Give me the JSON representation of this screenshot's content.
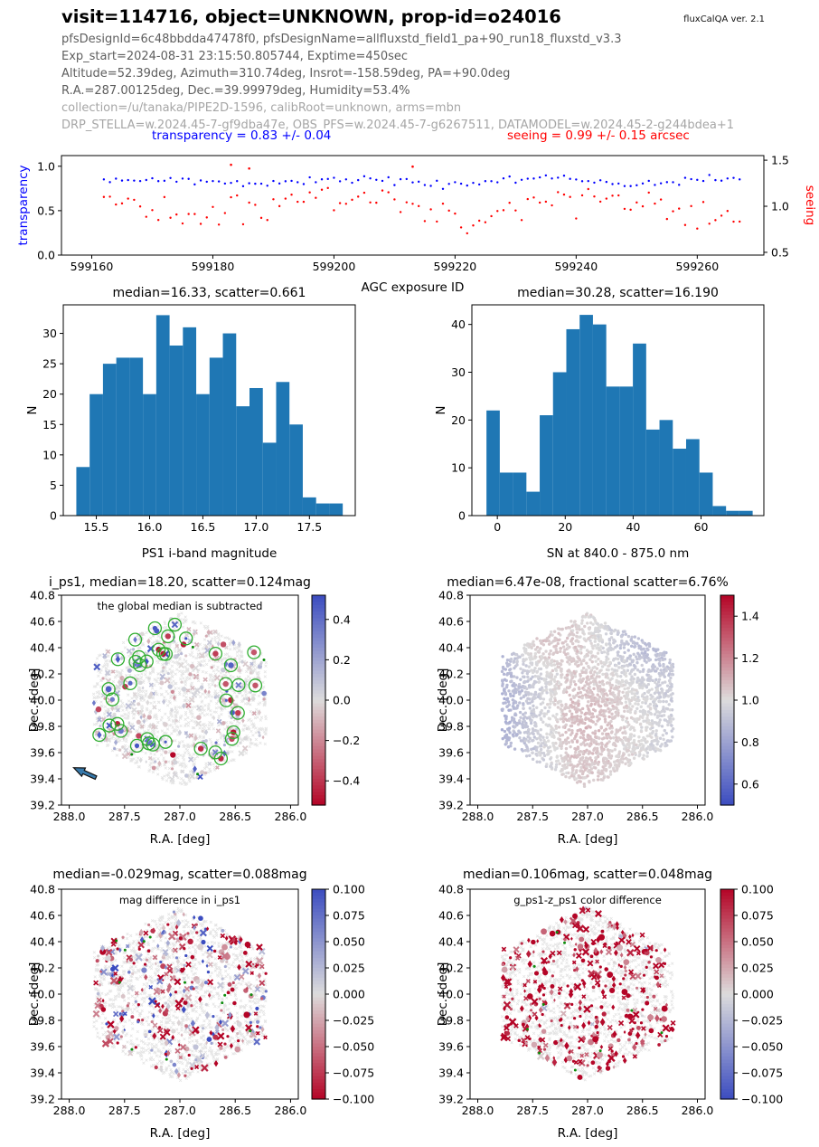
{
  "header": {
    "title": "visit=114716, object=UNKNOWN, prop-id=o24016",
    "version": "fluxCalQA ver. 2.1",
    "info_lines": [
      "pfsDesignId=6c48bbdda47478f0, pfsDesignName=allfluxstd_field1_pa+90_run18_fluxstd_v3.3",
      "Exp_start=2024-08-31 23:15:50.805744, Exptime=450sec",
      "Altitude=52.39deg, Azimuth=310.74deg, Insrot=-158.59deg, PA=+90.0deg",
      "R.A.=287.00125deg, Dec.=39.99979deg, Humidity=53.4%"
    ],
    "dim_lines": [
      "collection=/u/tanaka/PIPE2D-1596, calibRoot=unknown, arms=mbn",
      "DRP_STELLA=w.2024.45-7-gf9dba47e, OBS_PFS=w.2024.45-7-g6267511, DATAMODEL=w.2024.45-2-g244bdea+1"
    ],
    "transparency_text": "transparency = 0.83 +/- 0.04",
    "seeing_text": "seeing = 0.99 +/- 0.15 arcsec",
    "colors": {
      "transparency": "#0000ff",
      "seeing": "#ff0000"
    }
  },
  "chart_data": [
    {
      "id": "agc",
      "type": "scatter",
      "xlabel": "AGC exposure ID",
      "ylabel_left": "transparency",
      "ylabel_right": "seeing",
      "xlim": [
        599155,
        599271
      ],
      "xticks": {
        "values": [
          599160,
          599180,
          599200,
          599220,
          599240,
          599260
        ],
        "labels": [
          "599160",
          "599180",
          "599200",
          "599220",
          "599240",
          "599260"
        ]
      },
      "ylim_left": [
        0,
        1.12
      ],
      "yticks_left": {
        "values": [
          0,
          0.5,
          1.0
        ],
        "labels": [
          "0.0",
          "0.5",
          "1.0"
        ]
      },
      "ylim_right": [
        0.47,
        1.55
      ],
      "yticks_right": {
        "values": [
          0.5,
          1.0,
          1.5
        ],
        "labels": [
          "0.5",
          "1.0",
          "1.5"
        ]
      },
      "series": [
        {
          "name": "transparency",
          "axis": "left",
          "color": "#0000ff",
          "mean": 0.83,
          "scatter": 0.04,
          "x_start": 599162,
          "n": 106,
          "x_step": 1,
          "synthesized": true
        },
        {
          "name": "seeing",
          "axis": "right",
          "color": "#ff0000",
          "mean": 0.99,
          "scatter": 0.15,
          "x_start": 599162,
          "n": 106,
          "x_step": 1,
          "synthesized": true
        }
      ],
      "outliers": {
        "seeing": [
          [
            599183,
            1.45
          ],
          [
            599186,
            1.41
          ],
          [
            599213,
            1.43
          ]
        ]
      },
      "marker_size": 2.2,
      "seed": 42,
      "grid": false,
      "legend": "none"
    },
    {
      "id": "hist_i",
      "type": "bar",
      "title": "median=16.33, scatter=0.661",
      "xlabel": "PS1 i-band magnitude",
      "ylabel": "N",
      "bar_color": "#1f77b4",
      "bin_start": 15.3125,
      "bin_width": 0.125,
      "values": [
        8,
        20,
        25,
        26,
        26,
        20,
        33,
        28,
        31,
        20,
        26,
        30,
        18,
        21,
        12,
        22,
        15,
        3,
        2,
        2
      ],
      "xlim": [
        15.19,
        17.93
      ],
      "ylim": [
        0,
        34.7
      ],
      "xticks": {
        "values": [
          15.5,
          16.0,
          16.5,
          17.0,
          17.5
        ],
        "labels": [
          "15.5",
          "16.0",
          "16.5",
          "17.0",
          "17.5"
        ]
      },
      "yticks": {
        "values": [
          0,
          5,
          10,
          15,
          20,
          25,
          30
        ],
        "labels": [
          "0",
          "5",
          "10",
          "15",
          "20",
          "25",
          "30"
        ]
      },
      "grid": false
    },
    {
      "id": "hist_sn",
      "type": "bar",
      "title": "median=30.28, scatter=16.190",
      "xlabel": "SN at 840.0 - 875.0 nm",
      "ylabel": "N",
      "bar_color": "#1f77b4",
      "bin_start": -3.2,
      "bin_width": 3.92,
      "values": [
        22,
        9,
        9,
        5,
        21,
        30,
        39,
        42,
        40,
        27,
        27,
        36,
        18,
        20,
        14,
        16,
        9,
        2,
        1,
        1
      ],
      "xlim": [
        -7.5,
        78.5
      ],
      "ylim": [
        0,
        44.1
      ],
      "xticks": {
        "values": [
          0,
          20,
          40,
          60
        ],
        "labels": [
          "0",
          "20",
          "40",
          "60"
        ]
      },
      "yticks": {
        "values": [
          0,
          10,
          20,
          30,
          40
        ],
        "labels": [
          "0",
          "10",
          "20",
          "30",
          "40"
        ]
      },
      "grid": false
    },
    {
      "id": "map_ips1",
      "type": "scatter",
      "title": "i_ps1, median=18.20, scatter=0.124mag",
      "annotation": "the global median is subtracted",
      "xlabel": "R.A. [deg]",
      "ylabel": "Dec. [deg]",
      "xlim": [
        288.07,
        285.93
      ],
      "ylim": [
        39.2,
        40.8
      ],
      "xticks": {
        "values": [
          288.0,
          287.5,
          287.0,
          286.5,
          286.0
        ],
        "labels": [
          "288.0",
          "287.5",
          "287.0",
          "286.5",
          "286.0"
        ]
      },
      "yticks": {
        "values": [
          39.2,
          39.4,
          39.6,
          39.8,
          40.0,
          40.2,
          40.4,
          40.6,
          40.8
        ],
        "labels": [
          "39.2",
          "39.4",
          "39.6",
          "39.8",
          "40.0",
          "40.2",
          "40.4",
          "40.6",
          "40.8"
        ]
      },
      "colorbar": {
        "vmin": -0.52,
        "vmax": 0.52,
        "high_color": "blue",
        "ticks": [
          0.4,
          0.2,
          0.0,
          -0.2,
          -0.4
        ],
        "labels": [
          "0.4",
          "0.2",
          "0.0",
          "−0.2",
          "−0.4"
        ]
      },
      "hexagon": {
        "ra_center": 287.0,
        "dec_center": 40.0,
        "ra_halfwidth": 0.78,
        "dec_radius": 0.67
      },
      "style": {
        "mode": "qa",
        "n_points": 330,
        "value_mean": 0.0,
        "value_scatter": 0.085,
        "n_strong": 58,
        "strong_blue_fraction": 0.72,
        "n_green_circles": 38,
        "n_green_dots": 4,
        "background_n": 1500
      },
      "arrow": {
        "ra": 287.96,
        "dec": 39.485
      },
      "green_circle_color": "#2fae2f",
      "green_dot_color": "#0d8c0d",
      "synthesized_points": true,
      "seed": 7
    },
    {
      "id": "map_flux",
      "type": "scatter",
      "title": "median=6.47e-08, fractional scatter=6.76%",
      "xlabel": "R.A. [deg]",
      "ylabel": "Dec. [deg]",
      "xlim": [
        288.07,
        285.93
      ],
      "ylim": [
        39.2,
        40.8
      ],
      "xticks": {
        "values": [
          288.0,
          287.5,
          287.0,
          286.5,
          286.0
        ],
        "labels": [
          "288.0",
          "287.5",
          "287.0",
          "286.5",
          "286.0"
        ]
      },
      "yticks": {
        "values": [
          39.2,
          39.4,
          39.6,
          39.8,
          40.0,
          40.2,
          40.4,
          40.6,
          40.8
        ],
        "labels": [
          "39.2",
          "39.4",
          "39.6",
          "39.8",
          "40.0",
          "40.2",
          "40.4",
          "40.6",
          "40.8"
        ]
      },
      "colorbar": {
        "vmin": 0.5,
        "vmax": 1.5,
        "high_color": "red",
        "ticks": [
          1.4,
          1.2,
          1.0,
          0.8,
          0.6
        ],
        "labels": [
          "1.4",
          "1.2",
          "1.0",
          "0.8",
          "0.6"
        ]
      },
      "hexagon": {
        "ra_center": 287.0,
        "dec_center": 40.0,
        "ra_halfwidth": 0.78,
        "dec_radius": 0.67
      },
      "style": {
        "mode": "dense",
        "n_points": 2400,
        "pattern": "smooth gradient: blue at high-RA (left) edge ~0.85, warm pink center ~1.07, neutral low-RA edge"
      },
      "synthesized_points": true,
      "seed": 11
    },
    {
      "id": "map_magdiff",
      "type": "scatter",
      "title": "median=-0.029mag, scatter=0.088mag",
      "annotation": "mag difference in i_ps1",
      "xlabel": "R.A. [deg]",
      "ylabel": "Dec. [deg]",
      "xlim": [
        288.07,
        285.93
      ],
      "ylim": [
        39.2,
        40.8
      ],
      "xticks": {
        "values": [
          288.0,
          287.5,
          287.0,
          286.5,
          286.0
        ],
        "labels": [
          "288.0",
          "287.5",
          "287.0",
          "286.5",
          "286.0"
        ]
      },
      "yticks": {
        "values": [
          39.2,
          39.4,
          39.6,
          39.8,
          40.0,
          40.2,
          40.4,
          40.6,
          40.8
        ],
        "labels": [
          "39.2",
          "39.4",
          "39.6",
          "39.8",
          "40.0",
          "40.2",
          "40.4",
          "40.6",
          "40.8"
        ]
      },
      "colorbar": {
        "vmin": -0.1,
        "vmax": 0.1,
        "high_color": "blue",
        "ticks": [
          0.1,
          0.075,
          0.05,
          0.025,
          0.0,
          -0.025,
          -0.05,
          -0.075,
          -0.1
        ],
        "labels": [
          "0.100",
          "0.075",
          "0.050",
          "0.025",
          "0.000",
          "−0.025",
          "−0.050",
          "−0.075",
          "−0.100"
        ]
      },
      "hexagon": {
        "ra_center": 287.0,
        "dec_center": 40.0,
        "ra_halfwidth": 0.78,
        "dec_radius": 0.67
      },
      "style": {
        "mode": "qa2",
        "n_points": 390,
        "value_mean": -0.029,
        "value_scatter": 0.088,
        "n_green_dots": 12,
        "background_n": 1500
      },
      "green_dot_color": "#0d8c0d",
      "synthesized_points": true,
      "seed": 13
    },
    {
      "id": "map_colordiff",
      "type": "scatter",
      "title": "median=0.106mag, scatter=0.048mag",
      "annotation": "g_ps1-z_ps1 color difference",
      "xlabel": "R.A. [deg]",
      "ylabel": "Dec. [deg]",
      "xlim": [
        288.07,
        285.93
      ],
      "ylim": [
        39.2,
        40.8
      ],
      "xticks": {
        "values": [
          288.0,
          287.5,
          287.0,
          286.5,
          286.0
        ],
        "labels": [
          "288.0",
          "287.5",
          "287.0",
          "286.5",
          "286.0"
        ]
      },
      "yticks": {
        "values": [
          39.2,
          39.4,
          39.6,
          39.8,
          40.0,
          40.2,
          40.4,
          40.6,
          40.8
        ],
        "labels": [
          "39.2",
          "39.4",
          "39.6",
          "39.8",
          "40.0",
          "40.2",
          "40.4",
          "40.6",
          "40.8"
        ]
      },
      "colorbar": {
        "vmin": -0.1,
        "vmax": 0.1,
        "high_color": "red",
        "ticks": [
          0.1,
          0.075,
          0.05,
          0.025,
          0.0,
          -0.025,
          -0.05,
          -0.075,
          -0.1
        ],
        "labels": [
          "0.100",
          "0.075",
          "0.050",
          "0.025",
          "0.000",
          "−0.025",
          "−0.050",
          "−0.075",
          "−0.100"
        ]
      },
      "hexagon": {
        "ra_center": 287.0,
        "dec_center": 40.0,
        "ra_halfwidth": 0.78,
        "dec_radius": 0.67
      },
      "style": {
        "mode": "qa2",
        "n_points": 390,
        "value_mean": 0.106,
        "value_scatter": 0.048,
        "n_green_dots": 10,
        "background_n": 1500
      },
      "green_dot_color": "#0d8c0d",
      "synthesized_points": true,
      "seed": 17
    }
  ]
}
